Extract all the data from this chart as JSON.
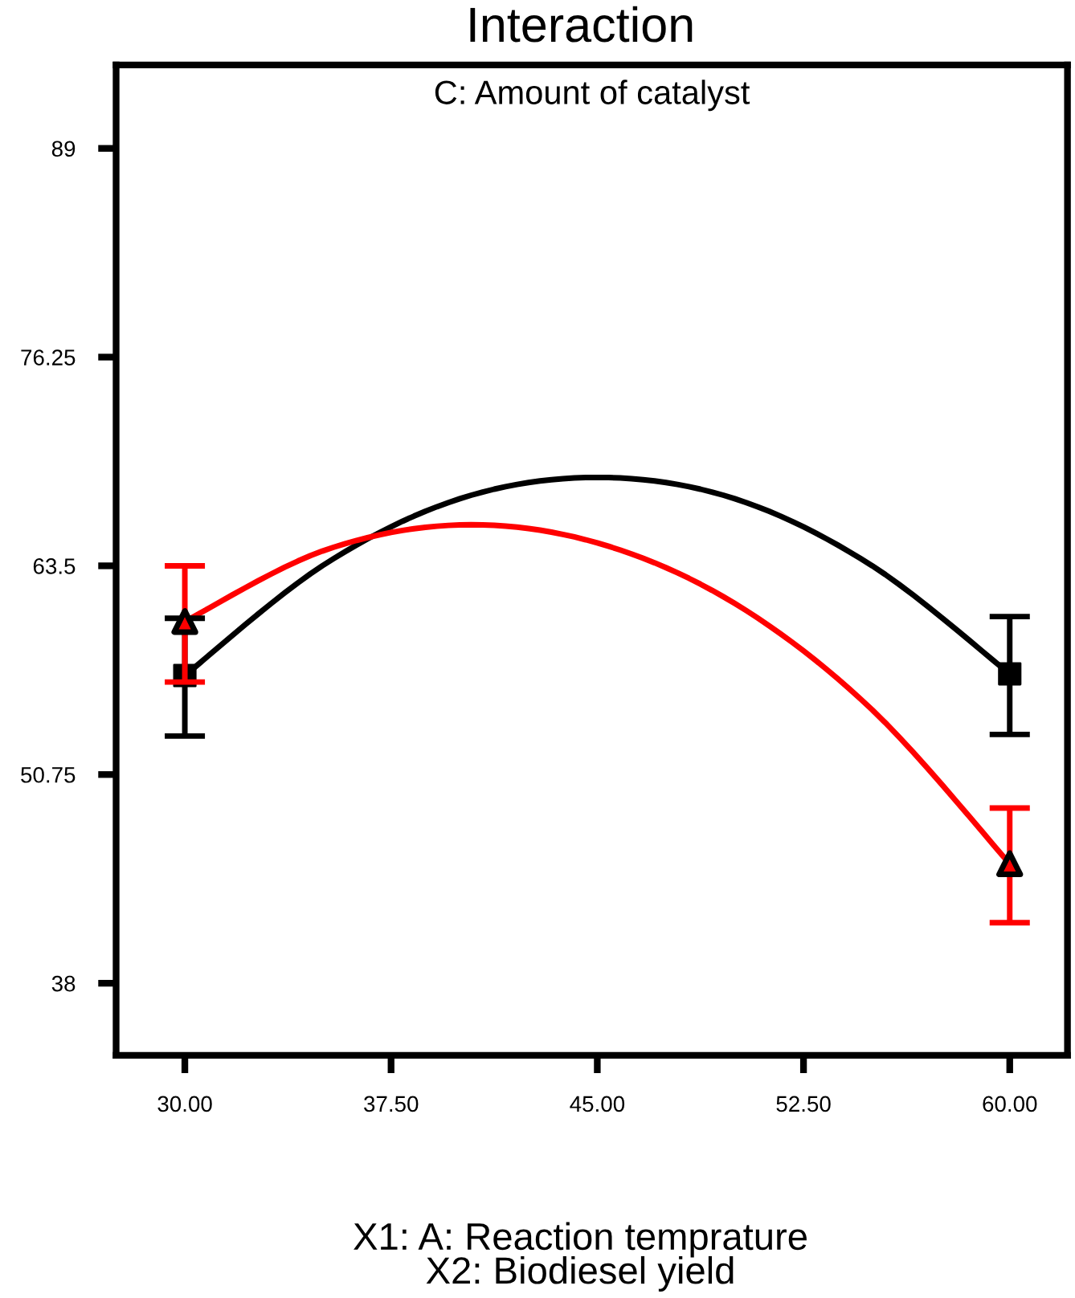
{
  "chart_data": {
    "type": "line",
    "title": "Interaction",
    "subtitle": "C: Amount of catalyst",
    "xlabel": "X1: A: Reaction temprature\nX2: Biodiesel yield",
    "xlim": [
      27.5,
      62.1
    ],
    "ylim": [
      33.6,
      94.1
    ],
    "xticks": [
      {
        "value": 30,
        "label": "30.00"
      },
      {
        "value": 37.5,
        "label": "37.50"
      },
      {
        "value": 45,
        "label": "45.00"
      },
      {
        "value": 52.5,
        "label": "52.50"
      },
      {
        "value": 60,
        "label": "60.00"
      }
    ],
    "yticks": [
      89,
      76.25,
      63.5,
      50.75,
      38
    ],
    "grid": false,
    "line_style": "solid",
    "series": [
      {
        "color": "#000000",
        "marker": "none",
        "x": [
          30,
          35,
          40,
          45,
          50,
          55,
          60
        ],
        "values": [
          56.8,
          63.5,
          67.6,
          68.9,
          67.6,
          63.5,
          56.9
        ]
      },
      {
        "color": "#ff0000",
        "marker": "none",
        "x": [
          30,
          35,
          40,
          45,
          50,
          55,
          60
        ],
        "values": [
          60.1,
          64.4,
          66.0,
          64.9,
          61.2,
          54.7,
          45.3
        ]
      },
      {
        "type": "scatter",
        "color": "#000000",
        "marker": "square",
        "x": [
          30,
          60
        ],
        "values": [
          56.8,
          56.9
        ],
        "errors": [
          [
            53.1,
            60.3
          ],
          [
            53.2,
            60.4
          ]
        ]
      },
      {
        "type": "scatter",
        "color": "#ff0000",
        "marker": "triangle",
        "x": [
          30,
          60
        ],
        "values": [
          60.1,
          45.3
        ],
        "errors": [
          [
            56.4,
            63.5
          ],
          [
            41.7,
            48.7
          ]
        ]
      }
    ]
  }
}
